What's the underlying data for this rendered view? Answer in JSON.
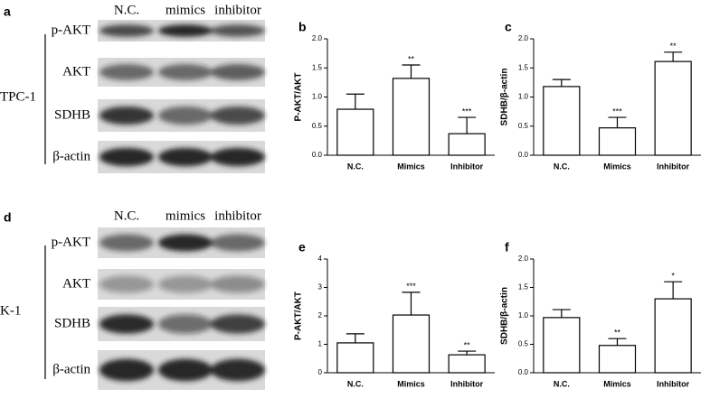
{
  "blots": [
    {
      "panel": "a",
      "cell_line": "TPC-1",
      "lanes": [
        "N.C.",
        "mimics",
        "inhibitor"
      ],
      "proteins": [
        "p-AKT",
        "AKT",
        "SDHB",
        "β-actin"
      ]
    },
    {
      "panel": "d",
      "cell_line": "K-1",
      "lanes": [
        "N.C.",
        "mimics",
        "inhibitor"
      ],
      "proteins": [
        "p-AKT",
        "AKT",
        "SDHB",
        "β-actin"
      ]
    }
  ],
  "chart_data": [
    {
      "type": "bar",
      "panel": "b",
      "ylabel": "P-AKT/AKT",
      "categories": [
        "N.C.",
        "Mimics",
        "Inhibitor"
      ],
      "values": [
        0.79,
        1.32,
        0.37
      ],
      "errors": [
        0.26,
        0.23,
        0.28
      ],
      "significance": [
        null,
        "**",
        "***"
      ],
      "color": "#ffffff",
      "ylim": [
        0,
        2
      ],
      "yticks": [
        {
          "value": 0,
          "label": "0.0"
        },
        0.5,
        {
          "value": 1,
          "label": "1.0"
        },
        1.5,
        {
          "value": 2,
          "label": "2.0"
        }
      ]
    },
    {
      "type": "bar",
      "panel": "c",
      "ylabel": "SDHB/β-actin",
      "categories": [
        "N.C.",
        "Mimics",
        "Inhibitor"
      ],
      "values": [
        1.18,
        0.47,
        1.61
      ],
      "errors": [
        0.12,
        0.18,
        0.16
      ],
      "significance": [
        null,
        "***",
        "**"
      ],
      "color": "#ffffff",
      "ylim": [
        0,
        2
      ],
      "yticks": [
        {
          "value": 0,
          "label": "0.0"
        },
        0.5,
        {
          "value": 1,
          "label": "1.0"
        },
        1.5,
        {
          "value": 2,
          "label": "2.0"
        }
      ]
    },
    {
      "type": "bar",
      "panel": "e",
      "ylabel": "P-AKT/AKT",
      "categories": [
        "N.C.",
        "Mimics",
        "Inhibitor"
      ],
      "values": [
        1.05,
        2.03,
        0.63
      ],
      "errors": [
        0.32,
        0.8,
        0.13
      ],
      "significance": [
        null,
        "***",
        "**"
      ],
      "color": "#ffffff",
      "ylim": [
        0,
        4
      ],
      "yticks": [
        0,
        1,
        2,
        3,
        4
      ]
    },
    {
      "type": "bar",
      "panel": "f",
      "ylabel": "SDHB/β-actin",
      "categories": [
        "N.C.",
        "Mimics",
        "Inhibitor"
      ],
      "values": [
        0.97,
        0.48,
        1.3
      ],
      "errors": [
        0.14,
        0.12,
        0.3
      ],
      "significance": [
        null,
        "**",
        "*"
      ],
      "color": "#ffffff",
      "ylim": [
        0,
        2
      ],
      "yticks": [
        {
          "value": 0,
          "label": "0.0"
        },
        0.5,
        {
          "value": 1,
          "label": "1.0"
        },
        1.5,
        {
          "value": 2,
          "label": "2.0"
        }
      ]
    }
  ]
}
